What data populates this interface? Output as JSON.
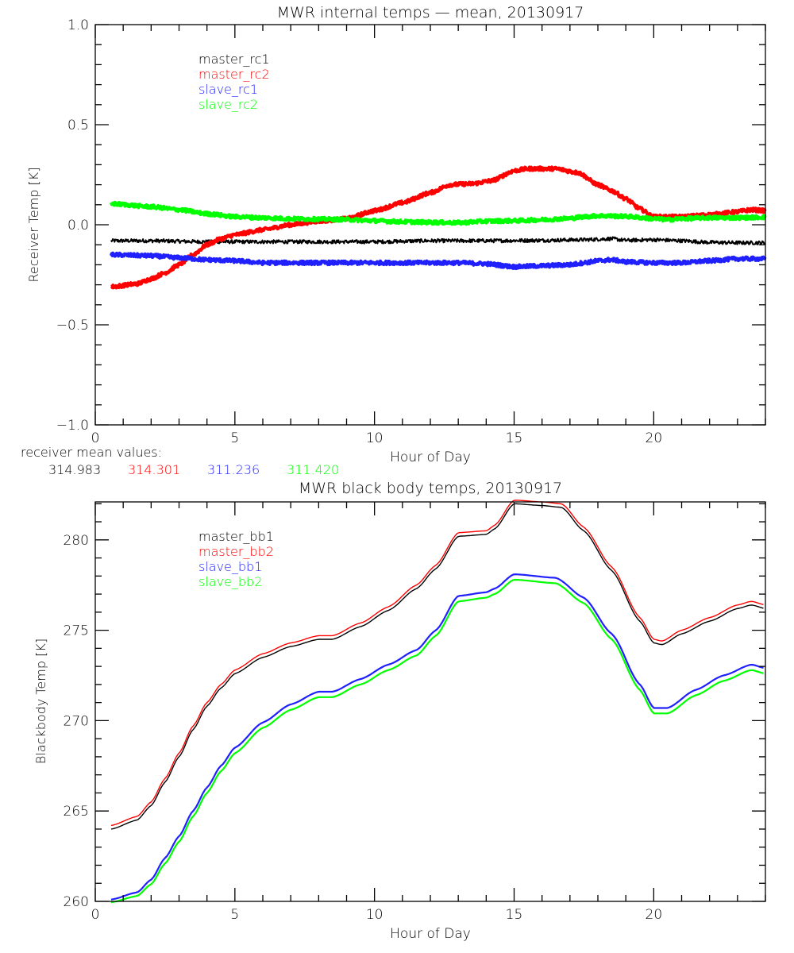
{
  "chart_data": [
    {
      "type": "line",
      "title": "MWR internal temps — mean, 20130917",
      "xlabel": "Hour of Day",
      "ylabel": "Receiver Temp [K]",
      "xlim": [
        0,
        24
      ],
      "ylim": [
        -1.0,
        1.0
      ],
      "xticks": [
        0,
        5,
        10,
        15,
        20
      ],
      "xtick_labels": [
        "0",
        "5",
        "10",
        "15",
        "20"
      ],
      "yticks": [
        -1.0,
        -0.5,
        0.0,
        0.5,
        1.0
      ],
      "ytick_labels": [
        "−1.0",
        "−0.5",
        "0.0",
        "0.5",
        "1.0"
      ],
      "grid": false,
      "legend_position": "top-left",
      "series": [
        {
          "name": "master_rc1",
          "color": "#000000",
          "x": [
            0.57,
            2,
            4,
            6,
            8,
            10,
            12,
            14,
            16,
            17.5,
            18.5,
            19,
            20,
            21,
            22,
            23,
            24
          ],
          "y": [
            -0.08,
            -0.08,
            -0.085,
            -0.085,
            -0.085,
            -0.085,
            -0.08,
            -0.08,
            -0.078,
            -0.075,
            -0.07,
            -0.078,
            -0.075,
            -0.08,
            -0.088,
            -0.09,
            -0.09
          ]
        },
        {
          "name": "master_rc2",
          "color": "#ff0000",
          "x": [
            0.57,
            1.5,
            2,
            2.5,
            3,
            3.5,
            4,
            4.5,
            5,
            6,
            7,
            8,
            9,
            10,
            11,
            12,
            12.7,
            13.5,
            14.2,
            15,
            15.5,
            16.5,
            17.3,
            18,
            18.5,
            19,
            19.5,
            20,
            21,
            22,
            23,
            23.5,
            24
          ],
          "y": [
            -0.31,
            -0.295,
            -0.27,
            -0.24,
            -0.2,
            -0.15,
            -0.1,
            -0.07,
            -0.05,
            -0.025,
            0.0,
            0.018,
            0.03,
            0.07,
            0.11,
            0.16,
            0.2,
            0.205,
            0.22,
            0.27,
            0.28,
            0.28,
            0.26,
            0.2,
            0.17,
            0.13,
            0.08,
            0.04,
            0.04,
            0.05,
            0.065,
            0.075,
            0.07
          ]
        },
        {
          "name": "slave_rc1",
          "color": "#2020ff",
          "x": [
            0.57,
            2,
            3,
            4,
            5,
            6,
            8,
            10,
            12,
            13,
            14,
            15,
            16,
            17,
            17.5,
            18,
            18.5,
            19,
            20,
            21,
            22,
            23,
            24
          ],
          "y": [
            -0.15,
            -0.155,
            -0.165,
            -0.175,
            -0.18,
            -0.19,
            -0.19,
            -0.19,
            -0.19,
            -0.19,
            -0.195,
            -0.21,
            -0.205,
            -0.2,
            -0.19,
            -0.18,
            -0.175,
            -0.185,
            -0.19,
            -0.19,
            -0.18,
            -0.17,
            -0.17
          ]
        },
        {
          "name": "slave_rc2",
          "color": "#00ff00",
          "x": [
            0.57,
            2,
            3,
            4,
            5,
            6,
            7,
            8,
            9,
            10,
            11,
            12,
            13,
            14,
            15,
            16,
            17,
            17.5,
            18,
            19,
            20,
            20.5,
            21,
            22,
            23,
            24
          ],
          "y": [
            0.105,
            0.09,
            0.075,
            0.055,
            0.04,
            0.035,
            0.03,
            0.028,
            0.026,
            0.02,
            0.015,
            0.012,
            0.01,
            0.018,
            0.02,
            0.025,
            0.032,
            0.04,
            0.045,
            0.042,
            0.03,
            0.025,
            0.03,
            0.035,
            0.035,
            0.038
          ]
        }
      ],
      "annotation": {
        "label": "receiver mean values:",
        "values": [
          {
            "text": "314.983",
            "color": "#000000"
          },
          {
            "text": "314.301",
            "color": "#ff0000"
          },
          {
            "text": "311.236",
            "color": "#2020ff"
          },
          {
            "text": "311.420",
            "color": "#00ff00"
          }
        ]
      }
    },
    {
      "type": "line",
      "title": "MWR black body temps, 20130917",
      "xlabel": "Hour of Day",
      "ylabel": "Blackbody Temp [K]",
      "xlim": [
        0,
        24
      ],
      "ylim": [
        260,
        282.1
      ],
      "xticks": [
        0,
        5,
        10,
        15,
        20
      ],
      "xtick_labels": [
        "0",
        "5",
        "10",
        "15",
        "20"
      ],
      "yticks": [
        260,
        265,
        270,
        275,
        280
      ],
      "ytick_labels": [
        "260",
        "265",
        "270",
        "275",
        "280"
      ],
      "grid": false,
      "legend_position": "top-left",
      "series": [
        {
          "name": "master_bb1",
          "color": "#000000",
          "x": [
            0.57,
            1.5,
            2,
            2.5,
            3,
            3.5,
            4,
            4.5,
            5,
            6,
            7,
            8,
            8.5,
            9.5,
            10.5,
            11.5,
            12.2,
            13,
            14,
            14.3,
            15,
            16,
            16.7,
            17.5,
            18.5,
            19.5,
            20,
            20.3,
            21,
            22,
            23,
            23.5,
            24
          ],
          "y": [
            264.0,
            264.5,
            265.3,
            266.6,
            268.0,
            269.5,
            270.8,
            271.8,
            272.6,
            273.5,
            274.1,
            274.5,
            274.5,
            275.2,
            276.1,
            277.3,
            278.4,
            280.2,
            280.3,
            280.6,
            282.0,
            281.9,
            281.8,
            280.5,
            278.3,
            275.5,
            274.3,
            274.2,
            274.8,
            275.5,
            276.2,
            276.4,
            276.2
          ]
        },
        {
          "name": "master_bb2",
          "color": "#ff0000",
          "x": [
            0.57,
            1.5,
            2,
            2.5,
            3,
            3.5,
            4,
            4.5,
            5,
            6,
            7,
            8,
            8.5,
            9.5,
            10.5,
            11.5,
            12.2,
            13,
            14,
            14.3,
            15,
            16,
            16.7,
            17.5,
            18.5,
            19.5,
            20,
            20.3,
            21,
            22,
            23,
            23.5,
            24
          ],
          "y": [
            264.2,
            264.7,
            265.5,
            266.8,
            268.2,
            269.7,
            271.0,
            272.0,
            272.8,
            273.7,
            274.3,
            274.7,
            274.7,
            275.4,
            276.3,
            277.5,
            278.6,
            280.4,
            280.5,
            280.8,
            282.2,
            282.1,
            282.0,
            280.7,
            278.5,
            275.7,
            274.5,
            274.4,
            275.0,
            275.7,
            276.4,
            276.6,
            276.4
          ]
        },
        {
          "name": "slave_bb1",
          "color": "#2020ff",
          "x": [
            0.57,
            1.5,
            2,
            2.5,
            3,
            3.5,
            4,
            4.5,
            5,
            6,
            7,
            8,
            8.5,
            9.5,
            10.5,
            11.5,
            12.2,
            13,
            14,
            14.3,
            15,
            16.5,
            17.5,
            18.5,
            19.5,
            20,
            20.5,
            21.5,
            22.5,
            23.5,
            24
          ],
          "y": [
            260.1,
            260.5,
            261.2,
            262.4,
            263.6,
            265.0,
            266.3,
            267.5,
            268.5,
            269.9,
            270.9,
            271.6,
            271.6,
            272.3,
            273.1,
            273.9,
            275.0,
            276.9,
            277.1,
            277.3,
            278.1,
            277.9,
            276.8,
            274.8,
            272.0,
            270.7,
            270.7,
            271.7,
            272.5,
            273.1,
            272.9
          ]
        },
        {
          "name": "slave_bb2",
          "color": "#00ff00",
          "x": [
            0.57,
            1.5,
            2,
            2.5,
            3,
            3.5,
            4,
            4.5,
            5,
            6,
            7,
            8,
            8.5,
            9.5,
            10.5,
            11.5,
            12.2,
            13,
            14,
            14.3,
            15,
            16.5,
            17.5,
            18.5,
            19.5,
            20,
            20.5,
            21.5,
            22.5,
            23.5,
            24
          ],
          "y": [
            259.95,
            260.3,
            260.95,
            262.1,
            263.3,
            264.7,
            266.0,
            267.2,
            268.2,
            269.6,
            270.6,
            271.3,
            271.3,
            272.0,
            272.8,
            273.6,
            274.7,
            276.6,
            276.8,
            277.0,
            277.8,
            277.6,
            276.5,
            274.5,
            271.7,
            270.4,
            270.4,
            271.4,
            272.2,
            272.8,
            272.6
          ]
        }
      ]
    }
  ]
}
